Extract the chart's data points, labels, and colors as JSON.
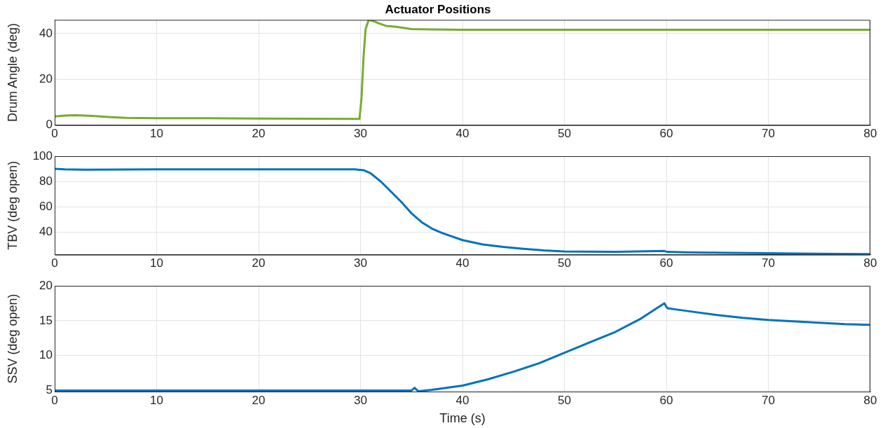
{
  "chart_data": [
    {
      "type": "line",
      "title": "Actuator Positions",
      "ylabel": "Drum Angle (deg)",
      "xlim": [
        0,
        80
      ],
      "xticks": [
        0,
        10,
        20,
        30,
        40,
        50,
        60,
        70,
        80
      ],
      "ylim": [
        0,
        46
      ],
      "yticks": [
        0,
        20,
        40
      ],
      "grid": true,
      "marker": "none",
      "line_style": "solid",
      "series": [
        {
          "color": "#77ac30",
          "x": [
            0,
            1,
            2,
            3,
            4,
            5.5,
            7,
            10,
            15,
            20,
            25,
            29.9,
            30.1,
            30.3,
            30.5,
            30.8,
            31.2,
            31.8,
            32.5,
            33.5,
            35,
            37,
            40,
            50,
            60,
            70,
            80
          ],
          "values": [
            3.8,
            4.2,
            4.3,
            4.2,
            3.9,
            3.5,
            3.2,
            3.0,
            3.0,
            2.9,
            2.8,
            2.7,
            12,
            30,
            42,
            46,
            45.6,
            44.5,
            43.4,
            43,
            42,
            41.8,
            41.7,
            41.7,
            41.7,
            41.7,
            41.7
          ]
        }
      ]
    },
    {
      "type": "line",
      "ylabel": "TBV (deg open)",
      "xlim": [
        0,
        80
      ],
      "xticks": [
        0,
        10,
        20,
        30,
        40,
        50,
        60,
        70,
        80
      ],
      "ylim": [
        22.4,
        100
      ],
      "yticks": [
        40,
        60,
        80,
        100
      ],
      "grid": true,
      "marker": "none",
      "line_style": "solid",
      "series": [
        {
          "color": "#0072bd",
          "x": [
            0,
            1,
            3,
            10,
            20,
            29.5,
            30.3,
            31,
            32,
            33,
            34,
            35,
            36,
            37,
            38,
            40,
            42,
            44,
            46,
            48,
            50,
            55,
            59.8,
            60.1,
            62,
            65,
            70,
            75,
            80
          ],
          "values": [
            90,
            89.6,
            89.4,
            89.6,
            89.6,
            89.6,
            89,
            86.5,
            80,
            72,
            64,
            55,
            48,
            43,
            39.5,
            33.9,
            30.5,
            28.5,
            27,
            25.8,
            25,
            24.6,
            25.3,
            24.6,
            24.3,
            24,
            23.6,
            23.2,
            22.9
          ]
        }
      ]
    },
    {
      "type": "line",
      "xlabel": "Time (s)",
      "ylabel": "SSV (deg open)",
      "xlim": [
        0,
        80
      ],
      "xticks": [
        0,
        10,
        20,
        30,
        40,
        50,
        60,
        70,
        80
      ],
      "ylim": [
        4.85,
        20
      ],
      "yticks": [
        5,
        10,
        15,
        20
      ],
      "grid": true,
      "marker": "none",
      "line_style": "solid",
      "series": [
        {
          "color": "#0072bd",
          "x": [
            0,
            10,
            20,
            30,
            35,
            35.3,
            35.5,
            35.7,
            37,
            40,
            42.5,
            45,
            47.5,
            50,
            52.5,
            55,
            57.5,
            59.8,
            60,
            60.1,
            61,
            62.5,
            65,
            67.5,
            70,
            72.5,
            75,
            77.5,
            80
          ],
          "values": [
            5,
            5,
            5,
            5,
            5,
            5.4,
            5.1,
            4.9,
            5.1,
            5.7,
            6.6,
            7.7,
            8.9,
            10.4,
            11.9,
            13.4,
            15.3,
            17.5,
            17.0,
            16.8,
            16.6,
            16.3,
            15.8,
            15.4,
            15.1,
            14.9,
            14.7,
            14.5,
            14.4
          ]
        }
      ]
    }
  ]
}
